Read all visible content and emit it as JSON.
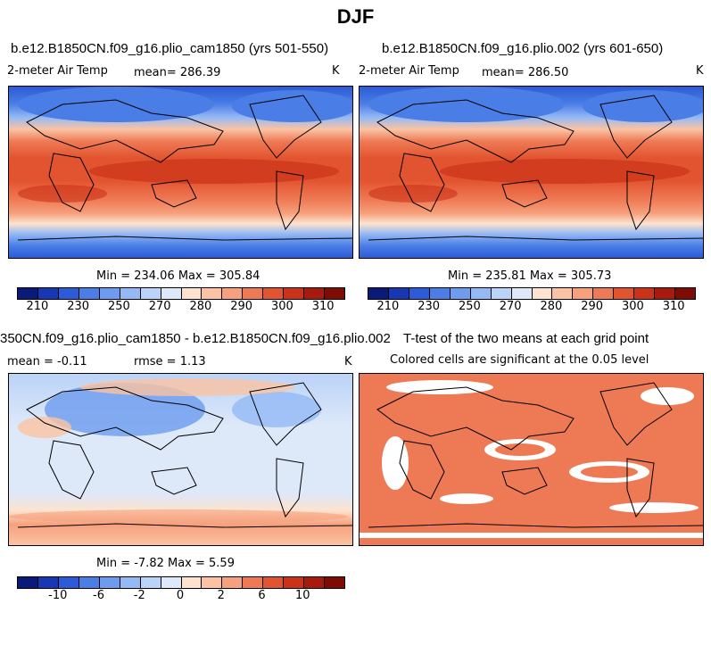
{
  "figure": {
    "title": "DJF"
  },
  "panels": [
    {
      "id": "p1",
      "title": "b.e12.B1850CN.f09_g16.plio_cam1850 (yrs 501-550)",
      "left_label": "2-meter Air Temp",
      "mean_label": "mean=  286.39",
      "right_label": "K",
      "minmax": "Min = 234.06 Max = 305.84"
    },
    {
      "id": "p2",
      "title": "b.e12.B1850CN.f09_g16.plio.002 (yrs 601-650)",
      "left_label": "2-meter Air Temp",
      "mean_label": "mean=  286.50",
      "right_label": "K",
      "minmax": "Min = 235.81 Max = 305.73"
    },
    {
      "id": "p3",
      "title": "350CN.f09_g16.plio_cam1850 - b.e12.B1850CN.f09_g16.plio.002",
      "left_label": "mean =   -0.11",
      "mean_label": "rmse =    1.13",
      "right_label": "K",
      "minmax": "Min =   -7.82 Max =    5.59"
    },
    {
      "id": "p4",
      "title": "T-test of the two means at each grid point",
      "subtitle": "Colored cells are significant at the 0.05 level"
    }
  ],
  "colorbars": {
    "temperature": {
      "colors": [
        "#0a1a78",
        "#1737b4",
        "#2b5bd6",
        "#4a7de6",
        "#6c9bef",
        "#94b9f5",
        "#bad3f8",
        "#dde8f9",
        "#fde3cf",
        "#fbc3a3",
        "#f6a07c",
        "#ee7a55",
        "#e2542f",
        "#cc3218",
        "#a81b0c",
        "#7e0b04"
      ],
      "ticks": [
        "210",
        "230",
        "250",
        "270",
        "280",
        "290",
        "300",
        "310"
      ],
      "tick_boundary_index": [
        1,
        3,
        5,
        7,
        9,
        11,
        13,
        15
      ]
    },
    "difference": {
      "colors": [
        "#0a1a78",
        "#1737b4",
        "#2b5bd6",
        "#4a7de6",
        "#6c9bef",
        "#94b9f5",
        "#bad3f8",
        "#dde8f9",
        "#fde3cf",
        "#fbc3a3",
        "#f6a07c",
        "#ee7a55",
        "#e2542f",
        "#cc3218",
        "#a81b0c",
        "#7e0b04"
      ],
      "ticks": [
        "-10",
        "-6",
        "-2",
        "0",
        "2",
        "6",
        "10"
      ],
      "tick_boundary_index": [
        2,
        4,
        6,
        8,
        10,
        12,
        14
      ]
    }
  },
  "chart_data": [
    {
      "type": "heatmap",
      "title": "b.e12.B1850CN.f09_g16.plio_cam1850 (yrs 501-550)",
      "variable": "2-meter Air Temp",
      "units": "K",
      "mean": 286.39,
      "min": 234.06,
      "max": 305.84,
      "color_levels": [
        210,
        230,
        250,
        270,
        280,
        290,
        300,
        310
      ]
    },
    {
      "type": "heatmap",
      "title": "b.e12.B1850CN.f09_g16.plio.002 (yrs 601-650)",
      "variable": "2-meter Air Temp",
      "units": "K",
      "mean": 286.5,
      "min": 235.81,
      "max": 305.73,
      "color_levels": [
        210,
        230,
        250,
        270,
        280,
        290,
        300,
        310
      ]
    },
    {
      "type": "heatmap",
      "title": "350CN.f09_g16.plio_cam1850 - b.e12.B1850CN.f09_g16.plio.002",
      "units": "K",
      "mean": -0.11,
      "rmse": 1.13,
      "min": -7.82,
      "max": 5.59,
      "color_levels": [
        -10,
        -6,
        -2,
        0,
        2,
        6,
        10
      ]
    },
    {
      "type": "heatmap",
      "title": "T-test of the two means at each grid point",
      "subtitle": "Colored cells are significant at the 0.05 level",
      "significance_level": 0.05
    }
  ]
}
